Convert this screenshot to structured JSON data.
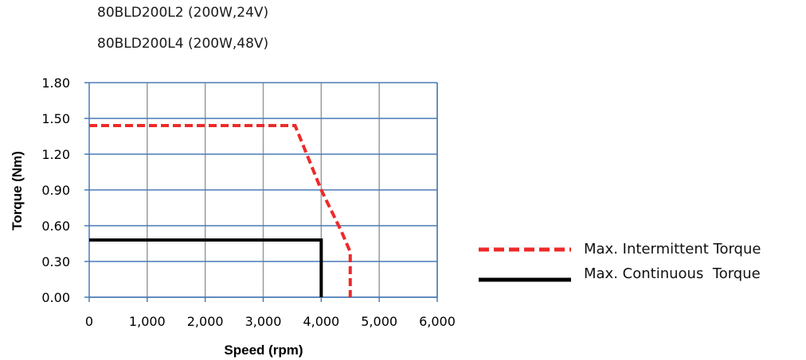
{
  "header": {
    "models": [
      "80BLD200L2 (200W,24V)",
      "80BLD200L4 (200W,48V)"
    ]
  },
  "chart_data": {
    "type": "line",
    "title": "",
    "xlabel": "Speed (rpm)",
    "ylabel": "Torque (Nm)",
    "xlim": [
      0,
      6000
    ],
    "ylim": [
      0,
      1.8
    ],
    "x_ticks": [
      0,
      1000,
      2000,
      3000,
      4000,
      5000,
      6000
    ],
    "x_tick_labels": [
      "0",
      "1,000",
      "2,000",
      "3,000",
      "4,000",
      "5,000",
      "6,000"
    ],
    "y_ticks": [
      0,
      0.3,
      0.6,
      0.9,
      1.2,
      1.5,
      1.8
    ],
    "y_tick_labels": [
      "0.00",
      "0.30",
      "0.60",
      "0.90",
      "1.20",
      "1.50",
      "1.80"
    ],
    "grid": true,
    "grid_color": "#9a9a9a",
    "axis_color": "#4a7ab5",
    "legend_position": "right",
    "series": [
      {
        "name": "Max. Intermittent Torque",
        "style": "dashed",
        "color": "#ee2a2a",
        "points": [
          [
            0,
            1.44
          ],
          [
            3550,
            1.44
          ],
          [
            4000,
            0.9
          ],
          [
            4350,
            0.55
          ],
          [
            4500,
            0.38
          ],
          [
            4500,
            0
          ]
        ]
      },
      {
        "name": "Max. Continuous  Torque",
        "style": "solid",
        "color": "#000000",
        "points": [
          [
            0,
            0.48
          ],
          [
            4000,
            0.48
          ],
          [
            4000,
            0
          ]
        ]
      }
    ]
  }
}
